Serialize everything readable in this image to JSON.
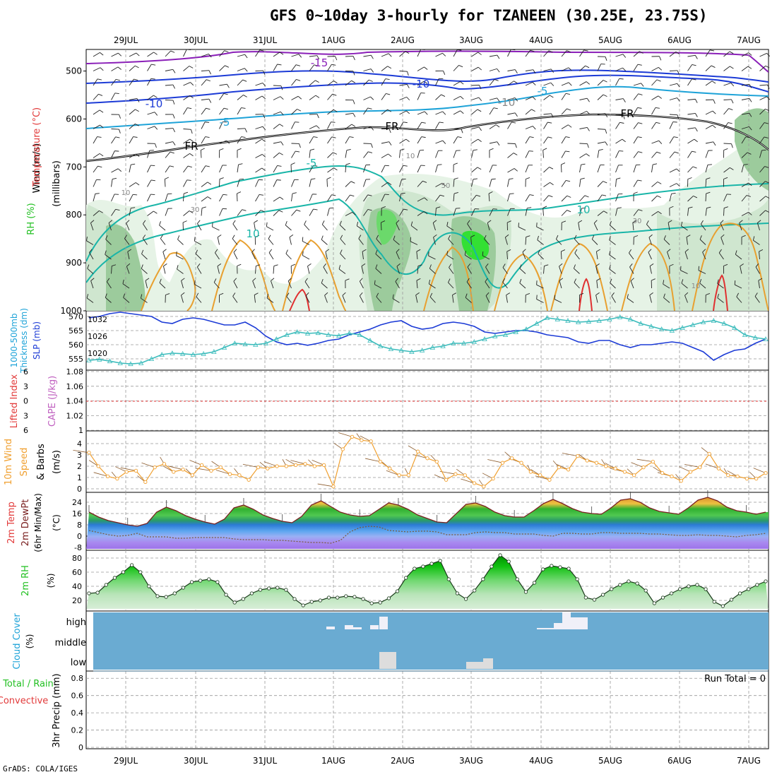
{
  "title": "GFS 0~10day 3-hourly for TZANEEN (30.25E, 23.75S)",
  "credit": "GrADS: COLA/IGES",
  "colors": {
    "wind_label": "#000000",
    "temp_label": "#e23a3a",
    "rh_label": "#22c022",
    "rh_shades": [
      "#e6f3e6",
      "#cfe6cf",
      "#9ccb9c",
      "#6bd96b",
      "#33e033"
    ],
    "isotherm_cold": "#8a1fb8",
    "isotherm_blue": "#1c3bd6",
    "isotherm_cyan": "#1ea3d8",
    "isotherm_teal": "#19b5a8",
    "isotherm_orange": "#e8a030",
    "isotherm_red": "#e03030",
    "slp": "#1c3bd6",
    "thickness": "#3cbcbc",
    "wind_speed": "#f0a030",
    "barb": "#8b5a2b",
    "cloud_bg": "#6aabd2",
    "cloud_fill": "#dddddd",
    "cloud_high": "#f0f0f8"
  },
  "dates": [
    "29JUL",
    "30JUL",
    "31JUL",
    "1AUG",
    "2AUG",
    "3AUG",
    "4AUG",
    "5AUG",
    "6AUG",
    "7AUG"
  ],
  "chart_data": [
    {
      "type": "contour",
      "panel": "upper_air",
      "ylabel_parts": [
        "Wind (m/s)",
        "Temperature (°C)",
        "RH (%)"
      ],
      "yunit": "(millibars)",
      "yticks": [
        500,
        600,
        700,
        800,
        900,
        1000
      ],
      "ylim": [
        455,
        1000
      ],
      "isotherm_labels": [
        "-15",
        "-10",
        "-10",
        "-5",
        "-5",
        "FR",
        "FR",
        "FR",
        "-5",
        "-10",
        "10",
        "10"
      ],
      "rh_labels": [
        "10",
        "10",
        "30",
        "30",
        "50",
        "10"
      ]
    },
    {
      "type": "line",
      "panel": "slp_thickness",
      "ylabel_left": "1000-500mb Thickness (dm)",
      "ylabel_right": "SLP (mb)",
      "yticks_left": [
        570,
        565,
        560,
        555
      ],
      "yticks_right": [
        1032,
        1026,
        1020
      ],
      "ylim_left": [
        551,
        572
      ],
      "ylim_right": [
        1014,
        1035
      ],
      "series": [
        {
          "name": "SLP",
          "axis": "right",
          "values": [
            1032.5,
            1033,
            1034,
            1034.5,
            1034,
            1033.5,
            1033,
            1031,
            1030.5,
            1032,
            1032.5,
            1032,
            1031,
            1030,
            1030,
            1031,
            1029,
            1026,
            1024,
            1023,
            1023.5,
            1022.8,
            1023.5,
            1024.5,
            1025,
            1026.5,
            1027.5,
            1028.5,
            1030,
            1031,
            1031.5,
            1029.5,
            1028.5,
            1029,
            1030.5,
            1031,
            1030.5,
            1029.5,
            1027.5,
            1027,
            1027.5,
            1028,
            1028,
            1027.5,
            1026.5,
            1026,
            1025.5,
            1024,
            1023.5,
            1024.5,
            1024.5,
            1023,
            1022,
            1023,
            1023,
            1023.5,
            1024,
            1023.5,
            1022,
            1020.5,
            1017.5,
            1019.5,
            1021,
            1021.5,
            1023.5,
            1025
          ]
        },
        {
          "name": "1000-500mb Thickness",
          "axis": "left",
          "values": [
            554.5,
            554.8,
            554.2,
            553.5,
            553.2,
            553.5,
            555,
            556.5,
            557,
            556.8,
            556.5,
            556.8,
            557.5,
            559,
            560.5,
            560.2,
            560,
            560.5,
            562,
            563.5,
            564.5,
            564,
            564.2,
            563.5,
            563.2,
            564,
            563.5,
            561.5,
            559.5,
            558.5,
            558,
            557.5,
            558,
            559,
            559.5,
            560.5,
            560.5,
            561,
            562,
            563,
            563.5,
            564.5,
            565.5,
            567.5,
            569.5,
            569,
            568.5,
            568,
            568.2,
            568.5,
            569,
            569.8,
            569,
            567.5,
            566.5,
            565.5,
            565,
            566,
            567,
            568,
            568.5,
            567.5,
            566,
            563.5,
            562.5,
            562
          ]
        }
      ]
    },
    {
      "type": "line",
      "panel": "stability",
      "ylabel_left": "Lifted Index",
      "ylabel_right": "CAPE (J/kg)",
      "yticks_left": [
        "6",
        "3",
        "0",
        "3",
        "6"
      ],
      "yticks_right": [
        "1.08",
        "1.06",
        "1.04",
        "1.02",
        "1"
      ],
      "ylim_left": [
        -6,
        6
      ],
      "series": [
        {
          "name": "Lifted Index",
          "values": []
        }
      ]
    },
    {
      "type": "line",
      "panel": "surface_wind",
      "ylabel": "10m Wind Speed (m/s) & Barbs",
      "ylabel_parts": [
        "10m Wind",
        "Speed",
        "(m/s)",
        "& Barbs"
      ],
      "yticks": [
        4,
        3,
        2,
        1,
        0
      ],
      "ylim": [
        0,
        5
      ],
      "series": [
        {
          "name": "10m Wind Speed",
          "values": [
            3.2,
            2,
            1.1,
            0.9,
            1.5,
            1.6,
            0.6,
            1.9,
            2.2,
            1.5,
            1.7,
            1.2,
            2.1,
            1.6,
            1.9,
            1.3,
            1.2,
            0.8,
            1.9,
            1.8,
            2,
            2,
            2.1,
            2.2,
            2,
            2.1,
            0.2,
            3.5,
            4.6,
            4.3,
            4.2,
            2.4,
            1.8,
            1.2,
            1.2,
            3.3,
            2.7,
            2.4,
            0.8,
            1.3,
            1.2,
            0.5,
            0.2,
            0.9,
            2.3,
            2.7,
            2.3,
            1.5,
            1.2,
            0.8,
            1.9,
            1.7,
            2.9,
            2.5,
            2.3,
            2,
            1.8,
            1.5,
            1.2,
            1.9,
            2.4,
            1.4,
            1.1,
            0.7,
            1.5,
            1.9,
            3.1,
            1.8,
            1.2,
            1.1,
            0.9,
            0.9,
            1.4
          ]
        }
      ]
    },
    {
      "type": "area",
      "panel": "temperature",
      "ylabel_parts": [
        "2m Temp",
        "2m DewPt",
        "(6hr Min/Max)"
      ],
      "yunit": "(°C)",
      "yticks": [
        24,
        16,
        8,
        0,
        -8
      ],
      "ylim": [
        -10,
        30
      ],
      "series": [
        {
          "name": "2m Temp",
          "values": [
            17,
            13.5,
            11,
            9.5,
            8,
            7,
            9,
            17,
            20.5,
            18,
            14.5,
            12,
            10,
            8.5,
            12,
            20,
            22,
            19,
            15,
            12.5,
            10.5,
            9.5,
            14,
            22,
            25,
            21,
            17,
            15,
            14,
            14.5,
            19,
            23.5,
            22,
            19,
            15,
            12.5,
            10,
            9.5,
            16,
            22.5,
            23.5,
            21,
            17,
            14.5,
            13.5,
            13.5,
            18,
            23,
            26,
            23,
            19.5,
            17,
            16,
            15.5,
            20,
            25.5,
            26.5,
            24,
            20,
            17.5,
            16.5,
            15.5,
            20,
            25.5,
            27.5,
            25,
            20.5,
            18,
            17,
            15.5,
            17
          ]
        },
        {
          "name": "2m DewPt",
          "values": [
            4,
            2.5,
            1,
            0,
            0.5,
            2,
            -0.5,
            -0.5,
            -0.5,
            -1.5,
            -1.5,
            -1,
            -1,
            -1,
            -1,
            -2,
            -2.5,
            -2.5,
            -2.5,
            -3,
            -3,
            -3.5,
            -4,
            -4.5,
            -4.5,
            -5,
            -3,
            3,
            6,
            7,
            6.5,
            4,
            3.5,
            3,
            3.5,
            3.5,
            3,
            1,
            1,
            1,
            2.5,
            3,
            2.5,
            2.5,
            1.5,
            1.5,
            1.5,
            0.5,
            0,
            2,
            2,
            1.5,
            1.5,
            2.5,
            2.5,
            2,
            2,
            2,
            1.5,
            1.5,
            1,
            0.5,
            0.5,
            1,
            0.5,
            0.5,
            0,
            -0.5,
            0.5,
            1,
            2
          ]
        }
      ]
    },
    {
      "type": "area",
      "panel": "relative_humidity",
      "ylabel": "2m RH",
      "yunit": "(%)",
      "yticks": [
        80,
        60,
        40,
        20
      ],
      "ylim": [
        8,
        88
      ],
      "series": [
        {
          "name": "2m RH",
          "values": [
            30,
            31,
            42,
            52,
            60,
            70,
            60,
            40,
            26,
            25,
            30,
            38,
            46,
            48,
            50,
            46,
            28,
            17,
            22,
            30,
            35,
            37,
            38,
            35,
            22,
            13,
            18,
            20,
            24,
            24,
            26,
            25,
            22,
            16,
            17,
            23,
            33,
            52,
            65,
            68,
            72,
            76,
            50,
            30,
            22,
            34,
            50,
            68,
            84,
            75,
            50,
            32,
            45,
            64,
            69,
            67,
            65,
            50,
            24,
            21,
            28,
            36,
            42,
            47,
            44,
            34,
            16,
            24,
            30,
            36,
            40,
            42,
            36,
            18,
            12,
            21,
            30,
            36,
            42,
            47
          ]
        }
      ]
    },
    {
      "type": "heatmap",
      "panel": "cloud_cover",
      "ylabel": "Cloud Cover",
      "yunit": "(%)",
      "levels": [
        "high",
        "middle",
        "low"
      ]
    },
    {
      "type": "bar",
      "panel": "precipitation",
      "ylabel_parts": [
        "Total / Rain",
        "Convective"
      ],
      "ylabel": "3hr Precip (mm)",
      "yticks": [
        "0.8",
        "0.6",
        "0.4",
        "0.2",
        "0"
      ],
      "ylim": [
        0,
        0.9
      ],
      "run_total_label": "Run Total = 0",
      "series": [
        {
          "name": "Total / Rain",
          "values": []
        },
        {
          "name": "Convective",
          "values": []
        }
      ]
    }
  ]
}
